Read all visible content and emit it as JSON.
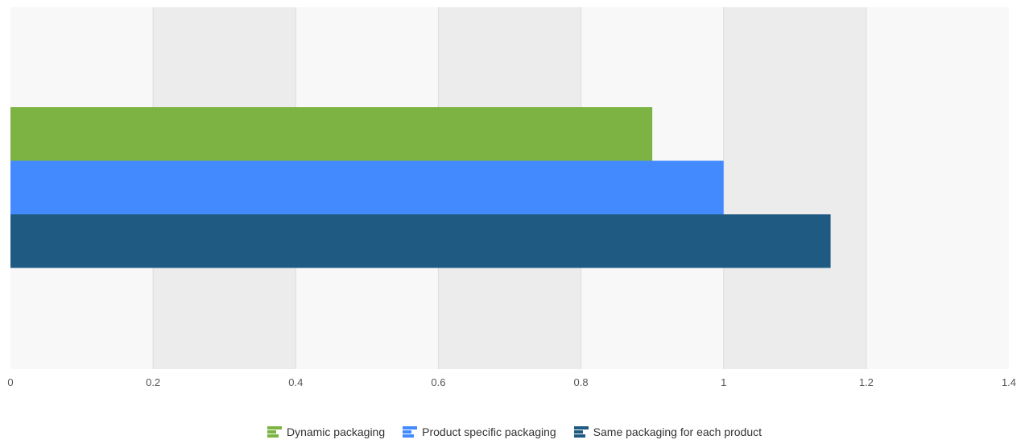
{
  "chart_data": {
    "type": "bar",
    "orientation": "horizontal",
    "categories": [
      ""
    ],
    "series": [
      {
        "name": "Dynamic packaging",
        "values": [
          0.9
        ],
        "color": "#7cb342"
      },
      {
        "name": "Product specific packaging",
        "values": [
          1.0
        ],
        "color": "#448aff"
      },
      {
        "name": "Same packaging for each product",
        "values": [
          1.15
        ],
        "color": "#1f5a82"
      }
    ],
    "xlim": [
      0,
      1.4
    ],
    "x_ticks": [
      "0",
      "0.2",
      "0.4",
      "0.6",
      "0.8",
      "1",
      "1.2",
      "1.4"
    ],
    "x_tick_values": [
      0,
      0.2,
      0.4,
      0.6,
      0.8,
      1.0,
      1.2,
      1.4
    ],
    "grid": "alternating vertical bands",
    "legend_position": "bottom",
    "title": "",
    "xlabel": "",
    "ylabel": ""
  },
  "colors": {
    "band_light": "#f8f8f8",
    "band_dark": "#ececec",
    "gridline": "#dddddd"
  }
}
